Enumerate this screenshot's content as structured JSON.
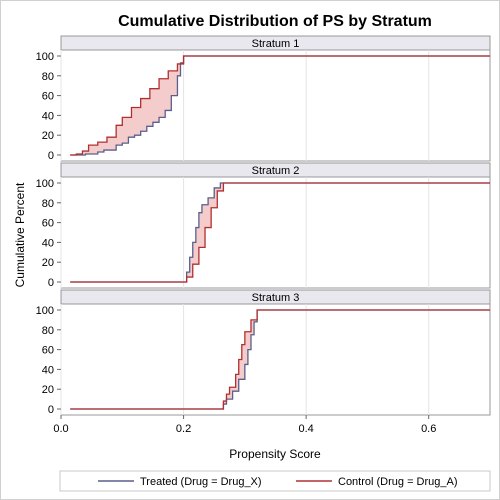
{
  "chart_data": {
    "type": "line",
    "title": "Cumulative Distribution of PS by Stratum",
    "xlabel": "Propensity Score",
    "ylabel": "Cumulative Percent",
    "xlim": [
      0.0,
      0.7
    ],
    "ylim": [
      0,
      100
    ],
    "x_ticks": [
      "0.0",
      "0.2",
      "0.4",
      "0.6"
    ],
    "y_ticks": [
      "0",
      "20",
      "40",
      "60",
      "80",
      "100"
    ],
    "legend": [
      {
        "label": "Treated (Drug = Drug_X)",
        "color": "#5a5f8c"
      },
      {
        "label": "Control (Drug = Drug_A)",
        "color": "#b03030"
      }
    ],
    "fill_color": "#f4c6c6",
    "panels": [
      {
        "label": "Stratum 1",
        "treated": [
          [
            0.015,
            0
          ],
          [
            0.03,
            0
          ],
          [
            0.04,
            1
          ],
          [
            0.06,
            3
          ],
          [
            0.07,
            5
          ],
          [
            0.08,
            5
          ],
          [
            0.09,
            10
          ],
          [
            0.1,
            12
          ],
          [
            0.11,
            18
          ],
          [
            0.12,
            20
          ],
          [
            0.13,
            24
          ],
          [
            0.14,
            29
          ],
          [
            0.15,
            33
          ],
          [
            0.16,
            38
          ],
          [
            0.17,
            45
          ],
          [
            0.18,
            60
          ],
          [
            0.19,
            80
          ],
          [
            0.195,
            93
          ],
          [
            0.2,
            100
          ],
          [
            0.7,
            100
          ]
        ],
        "control": [
          [
            0.015,
            0
          ],
          [
            0.025,
            1
          ],
          [
            0.035,
            4
          ],
          [
            0.045,
            10
          ],
          [
            0.06,
            13
          ],
          [
            0.075,
            18
          ],
          [
            0.09,
            30
          ],
          [
            0.1,
            38
          ],
          [
            0.115,
            48
          ],
          [
            0.13,
            57
          ],
          [
            0.145,
            67
          ],
          [
            0.16,
            77
          ],
          [
            0.175,
            85
          ],
          [
            0.19,
            92
          ],
          [
            0.2,
            100
          ],
          [
            0.7,
            100
          ]
        ]
      },
      {
        "label": "Stratum 2",
        "treated": [
          [
            0.015,
            0
          ],
          [
            0.2,
            0
          ],
          [
            0.205,
            10
          ],
          [
            0.21,
            25
          ],
          [
            0.215,
            40
          ],
          [
            0.22,
            55
          ],
          [
            0.225,
            70
          ],
          [
            0.23,
            78
          ],
          [
            0.24,
            85
          ],
          [
            0.25,
            95
          ],
          [
            0.26,
            100
          ],
          [
            0.7,
            100
          ]
        ],
        "control": [
          [
            0.015,
            0
          ],
          [
            0.195,
            0
          ],
          [
            0.205,
            5
          ],
          [
            0.215,
            18
          ],
          [
            0.225,
            35
          ],
          [
            0.235,
            55
          ],
          [
            0.245,
            75
          ],
          [
            0.255,
            92
          ],
          [
            0.265,
            100
          ],
          [
            0.7,
            100
          ]
        ]
      },
      {
        "label": "Stratum 3",
        "treated": [
          [
            0.015,
            0
          ],
          [
            0.26,
            0
          ],
          [
            0.265,
            5
          ],
          [
            0.27,
            10
          ],
          [
            0.28,
            18
          ],
          [
            0.29,
            30
          ],
          [
            0.3,
            45
          ],
          [
            0.305,
            60
          ],
          [
            0.31,
            75
          ],
          [
            0.315,
            88
          ],
          [
            0.32,
            100
          ],
          [
            0.7,
            100
          ]
        ],
        "control": [
          [
            0.015,
            0
          ],
          [
            0.26,
            0
          ],
          [
            0.265,
            8
          ],
          [
            0.27,
            15
          ],
          [
            0.275,
            22
          ],
          [
            0.285,
            35
          ],
          [
            0.29,
            50
          ],
          [
            0.295,
            65
          ],
          [
            0.3,
            78
          ],
          [
            0.31,
            90
          ],
          [
            0.32,
            100
          ],
          [
            0.7,
            100
          ]
        ]
      }
    ]
  }
}
